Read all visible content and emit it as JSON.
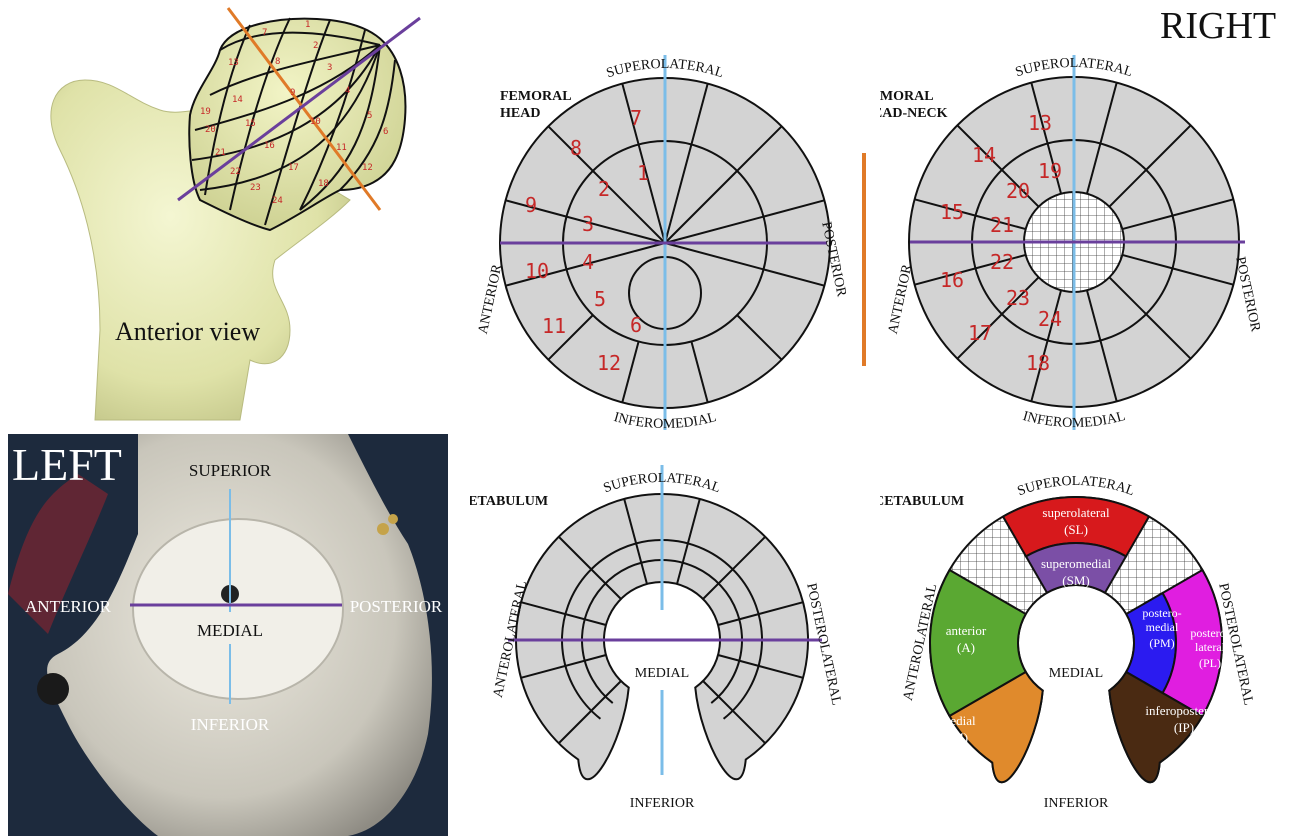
{
  "page_title": "RIGHT",
  "femur": {
    "caption": "Anterior view",
    "grid_numbers": [
      "1",
      "2",
      "3",
      "4",
      "5",
      "6",
      "7",
      "8",
      "9",
      "10",
      "11",
      "12",
      "13",
      "14",
      "15",
      "16",
      "17",
      "18",
      "19",
      "20",
      "21",
      "22",
      "23",
      "24"
    ]
  },
  "pelvis": {
    "side": "LEFT",
    "superior": "SUPERIOR",
    "anterior": "ANTERIOR",
    "posterior": "POSTERIOR",
    "medial": "MEDIAL",
    "inferior": "INFERIOR"
  },
  "femoral_head": {
    "title_line1": "FEMORAL",
    "title_line2": "HEAD",
    "top": "SUPEROLATERAL",
    "bottom": "INFEROMEDIAL",
    "left": "ANTERIOR",
    "right": "POSTERIOR",
    "outer_numbers": [
      "7",
      "8",
      "9",
      "10",
      "11",
      "12"
    ],
    "inner_numbers": [
      "1",
      "2",
      "3",
      "4",
      "5",
      "6"
    ]
  },
  "head_neck": {
    "title_line1": "FEMORAL",
    "title_line2": "HEAD-NECK",
    "top": "SUPEROLATERAL",
    "bottom": "INFEROMEDIAL",
    "left": "ANTERIOR",
    "right": "POSTERIOR",
    "outer_numbers": [
      "13",
      "14",
      "15",
      "16",
      "17",
      "18"
    ],
    "inner_numbers": [
      "19",
      "20",
      "21",
      "22",
      "23",
      "24"
    ]
  },
  "acetabulum_grid": {
    "title": "ACETABULUM",
    "top": "SUPEROLATERAL",
    "left": "ANTEROLATERAL",
    "right": "POSTEROLATERAL",
    "center": "MEDIAL",
    "bottom": "INFERIOR"
  },
  "acetabulum_zones": {
    "title": "ACETABULUM",
    "top": "SUPEROLATERAL",
    "left": "ANTEROLATERAL",
    "right": "POSTEROLATERAL",
    "center": "MEDIAL",
    "bottom": "INFERIOR",
    "zones": [
      {
        "name": "superolateral",
        "abbr": "(SL)",
        "color": "#d7191c"
      },
      {
        "name": "superomedial",
        "abbr": "(SM)",
        "color": "#7b4fa6"
      },
      {
        "name": "anterior",
        "abbr": "(A)",
        "color": "#5aa832"
      },
      {
        "name": "medial",
        "abbr": "(M)",
        "color": "#e08a2c"
      },
      {
        "name": "postero-medial",
        "abbr": "(PM)",
        "color": "#2b1bf0"
      },
      {
        "name": "postero-lateral",
        "abbr": "(PL)",
        "color": "#e01ee0"
      },
      {
        "name": "inferoposterior",
        "abbr": "(IP)",
        "color": "#4a2a12"
      }
    ]
  },
  "colors": {
    "axis_blue": "#7bbde8",
    "axis_purple": "#6a3f9c",
    "axis_orange": "#e07a28",
    "segment_gray": "#d3d3d3",
    "number_red": "#c62828",
    "bone": "#e4e6b4"
  }
}
